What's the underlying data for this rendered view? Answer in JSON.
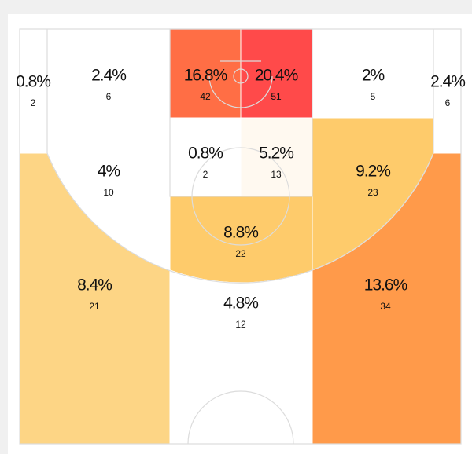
{
  "zones": [
    {
      "pct": "0.8%",
      "count": 2,
      "color": "#ffffff"
    },
    {
      "pct": "2.4%",
      "count": 6,
      "color": "#ffffff"
    },
    {
      "pct": "4%",
      "count": 10,
      "color": "#ffffff"
    },
    {
      "pct": "16.8%",
      "count": 42,
      "color": "#ff6e45"
    },
    {
      "pct": "20.4%",
      "count": 51,
      "color": "#ff4a4a"
    },
    {
      "pct": "0.8%",
      "count": 2,
      "color": "#ffffff"
    },
    {
      "pct": "5.2%",
      "count": 13,
      "color": "#fff9f0"
    },
    {
      "pct": "8.8%",
      "count": 22,
      "color": "#fecb6b"
    },
    {
      "pct": "2%",
      "count": 5,
      "color": "#ffffff"
    },
    {
      "pct": "2.4%",
      "count": 6,
      "color": "#ffffff"
    },
    {
      "pct": "9.2%",
      "count": 23,
      "color": "#fecb6b"
    },
    {
      "pct": "8.4%",
      "count": 21,
      "color": "#fdd585"
    },
    {
      "pct": "4.8%",
      "count": 12,
      "color": "#ffffff"
    },
    {
      "pct": "13.6%",
      "count": 34,
      "color": "#ff9a4a"
    }
  ]
}
